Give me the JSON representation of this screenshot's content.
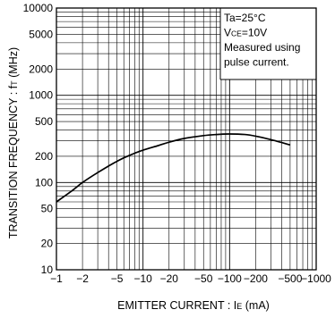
{
  "chart_data": {
    "type": "line",
    "xlabel_main": "EMITTER  CURRENT : I",
    "xlabel_sub": "E",
    "xlabel_unit": " (mA)",
    "ylabel_main": "TRANSITION  FREQUENCY : f",
    "ylabel_sub": "T",
    "ylabel_unit": " (MHz)",
    "x_scale": "log",
    "y_scale": "log",
    "xlim": [
      -1,
      -1000
    ],
    "ylim": [
      10,
      10000
    ],
    "grid": true,
    "x_ticks": [
      {
        "value": 1,
        "label": "−1"
      },
      {
        "value": 2,
        "label": "−2"
      },
      {
        "value": 5,
        "label": "−5"
      },
      {
        "value": 10,
        "label": "−10"
      },
      {
        "value": 20,
        "label": "−20"
      },
      {
        "value": 50,
        "label": "−50"
      },
      {
        "value": 100,
        "label": "−100"
      },
      {
        "value": 200,
        "label": "−200"
      },
      {
        "value": 500,
        "label": "−500"
      },
      {
        "value": 1000,
        "label": "−1000"
      }
    ],
    "y_ticks": [
      {
        "value": 10,
        "label": "10"
      },
      {
        "value": 20,
        "label": "20"
      },
      {
        "value": 50,
        "label": "50"
      },
      {
        "value": 100,
        "label": "100"
      },
      {
        "value": 200,
        "label": "200"
      },
      {
        "value": 500,
        "label": "500"
      },
      {
        "value": 1000,
        "label": "1000"
      },
      {
        "value": 2000,
        "label": "2000"
      },
      {
        "value": 5000,
        "label": "5000"
      },
      {
        "value": 10000,
        "label": "10000"
      }
    ],
    "annotation": {
      "lines": [
        {
          "main": "Ta=25°C",
          "sub": "",
          "rest": ""
        },
        {
          "main": "V",
          "sub": "CE",
          "rest": "=10V"
        },
        {
          "main": "Measured using",
          "sub": "",
          "rest": ""
        },
        {
          "main": "pulse current.",
          "sub": "",
          "rest": ""
        }
      ]
    },
    "series": [
      {
        "x": [
          1,
          1.5,
          2,
          3,
          5,
          7,
          10,
          15,
          20,
          30,
          50,
          70,
          100,
          150,
          200,
          300,
          500
        ],
        "y": [
          60,
          80,
          100,
          130,
          175,
          205,
          235,
          265,
          290,
          320,
          345,
          355,
          360,
          355,
          340,
          310,
          270
        ]
      }
    ]
  }
}
